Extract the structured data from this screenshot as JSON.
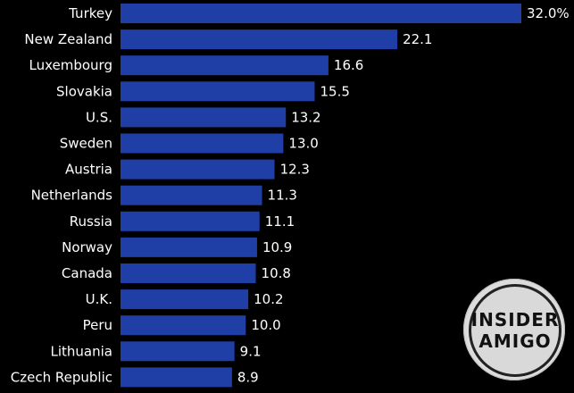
{
  "chart_data": {
    "type": "bar",
    "orientation": "horizontal",
    "categories": [
      "Turkey",
      "New Zealand",
      "Luxembourg",
      "Slovakia",
      "U.S.",
      "Sweden",
      "Austria",
      "Netherlands",
      "Russia",
      "Norway",
      "Canada",
      "U.K.",
      "Peru",
      "Lithuania",
      "Czech Republic"
    ],
    "values": [
      32.0,
      22.1,
      16.6,
      15.5,
      13.2,
      13.0,
      12.3,
      11.3,
      11.1,
      10.9,
      10.8,
      10.2,
      10.0,
      9.1,
      8.9
    ],
    "value_labels": [
      "32.0%",
      "22.1",
      "16.6",
      "15.5",
      "13.2",
      "13.0",
      "12.3",
      "11.3",
      "11.1",
      "10.9",
      "10.8",
      "10.2",
      "10.0",
      "9.1",
      "8.9"
    ],
    "xlim": [
      0,
      32.0
    ],
    "bar_color": "#1f3ea6",
    "background": "#000000",
    "grid": false
  },
  "watermark": {
    "line1": "INSIDER",
    "line2": "AMIGO"
  }
}
